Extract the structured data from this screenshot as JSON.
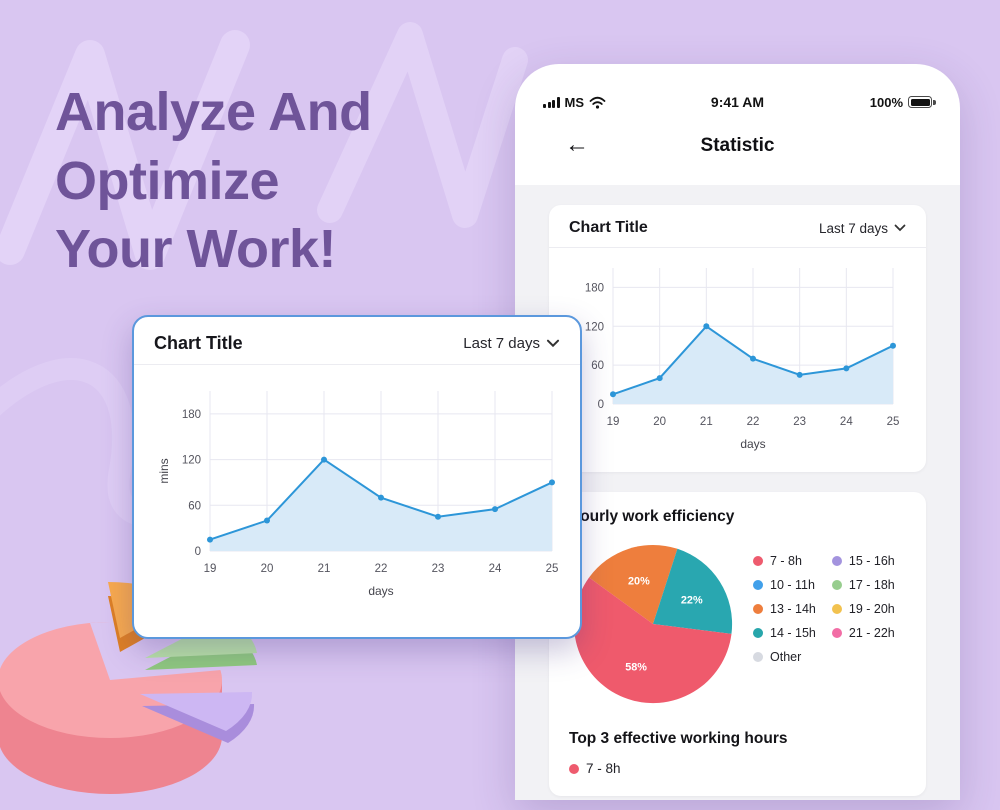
{
  "page": {
    "headline": "Analyze And\nOptimize\nYour Work!"
  },
  "phone": {
    "status_bar": {
      "carrier": "MS",
      "time": "9:41 AM",
      "battery": "100%"
    },
    "nav": {
      "back": "←",
      "title": "Statistic"
    },
    "chart_card": {
      "title": "Chart Title",
      "range_label": "Last 7 days"
    },
    "efficiency_card": {
      "title": "Hourly work efficiency",
      "legend_columns": [
        [
          {
            "label": "7 - 8h",
            "color": "#ee5b6e"
          },
          {
            "label": "10 - 11h",
            "color": "#41a0ea"
          },
          {
            "label": "13 - 14h",
            "color": "#ee7e3d"
          },
          {
            "label": "14 - 15h",
            "color": "#27a6ab"
          },
          {
            "label": "Other",
            "color": "#d7dae1"
          }
        ],
        [
          {
            "label": "15 - 16h",
            "color": "#a393de"
          },
          {
            "label": "17 - 18h",
            "color": "#97cd8e"
          },
          {
            "label": "19 - 20h",
            "color": "#f2c24f"
          },
          {
            "label": "21 - 22h",
            "color": "#f26da5"
          }
        ]
      ],
      "top_title": "Top 3 effective working hours",
      "top_items": [
        {
          "label": "7 - 8h",
          "color": "#ee5b6e"
        }
      ]
    }
  },
  "floating_card": {
    "title": "Chart Title",
    "range_label": "Last 7 days"
  },
  "chart_data": [
    {
      "type": "line",
      "title": "Chart Title (phone card)",
      "x": [
        19,
        20,
        21,
        22,
        23,
        24,
        25
      ],
      "values": [
        15,
        40,
        120,
        70,
        45,
        55,
        90
      ],
      "xlabel": "days",
      "ylabel": "",
      "yticks": [
        0,
        60,
        120,
        180
      ],
      "ylim": [
        0,
        210
      ],
      "grid": true,
      "legend": "none",
      "line_color": "#2d96d8",
      "fill_color": "#d8eaf8"
    },
    {
      "type": "line",
      "title": "Chart Title (floating card)",
      "x": [
        19,
        20,
        21,
        22,
        23,
        24,
        25
      ],
      "values": [
        15,
        40,
        120,
        70,
        45,
        55,
        90
      ],
      "xlabel": "days",
      "ylabel": "mins",
      "yticks": [
        0,
        60,
        120,
        180
      ],
      "ylim": [
        0,
        210
      ],
      "grid": true,
      "legend": "none",
      "line_color": "#2d96d8",
      "fill_color": "#d8eaf8"
    },
    {
      "type": "pie",
      "title": "Hourly work efficiency",
      "start_angle": -54,
      "slices": [
        {
          "label": "13 - 14h",
          "value": 20,
          "pct_label": "20%",
          "color": "#ee7e3d"
        },
        {
          "label": "14 - 15h",
          "value": 22,
          "pct_label": "22%",
          "color": "#29a7b0"
        },
        {
          "label": "7 - 8h",
          "value": 58,
          "pct_label": "58%",
          "color": "#ef5a6c"
        }
      ]
    }
  ]
}
